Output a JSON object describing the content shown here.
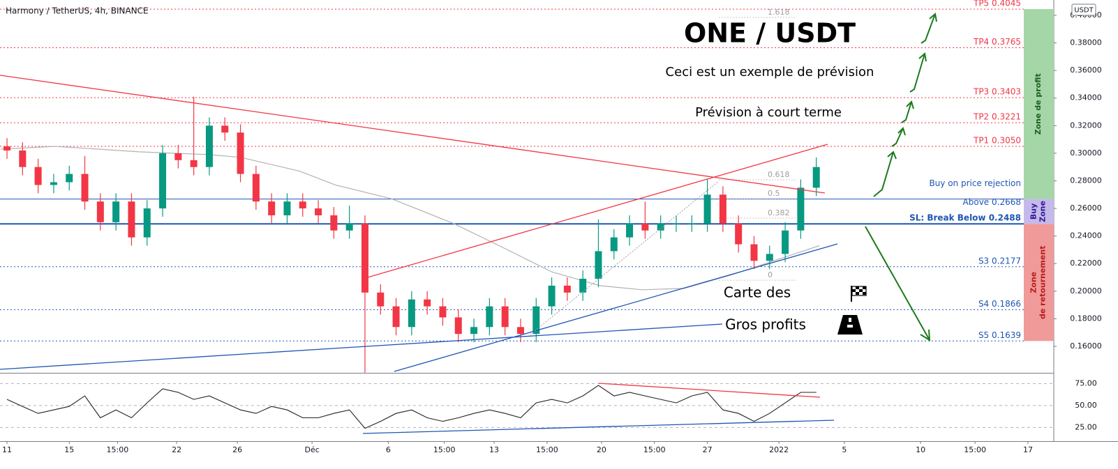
{
  "header": "Harmony / TetherUS, 4h, BINANCE",
  "currency": "USDT",
  "annotations": {
    "title": "ONE / USDT",
    "subtitle": "Ceci est un exemple de prévision",
    "short_term": "Prévision à court terme",
    "brand_line1": "Carte des",
    "brand_line2": "Gros profits"
  },
  "zones": [
    {
      "lines": [
        "Zone de profit"
      ],
      "from": 0.2668,
      "to": 0.4045,
      "color": "#a5d6a7",
      "text_color": "#1b5e20"
    },
    {
      "lines": [
        "Buy",
        "Zone"
      ],
      "from": 0.2488,
      "to": 0.2668,
      "color": "#c5b9ec",
      "text_color": "#311b92"
    },
    {
      "lines": [
        "Zone",
        "de retournement"
      ],
      "from": 0.1639,
      "to": 0.2488,
      "color": "#f09a9a",
      "text_color": "#b71c1c"
    }
  ],
  "chart_data": [
    {
      "type": "candlestick",
      "x": [
        0,
        1,
        2,
        3,
        4,
        5,
        6,
        7,
        8,
        9,
        10,
        11,
        12,
        13,
        14,
        15,
        16,
        17,
        18,
        19,
        20,
        21,
        22,
        23,
        24,
        25,
        26,
        27,
        28,
        29,
        30,
        31,
        32,
        33,
        34,
        35,
        36,
        37,
        38,
        39,
        40,
        41,
        42,
        43,
        44,
        45,
        46,
        47,
        48,
        49,
        50,
        51,
        52
      ],
      "open": [
        0.305,
        0.302,
        0.29,
        0.277,
        0.279,
        0.285,
        0.265,
        0.25,
        0.265,
        0.239,
        0.26,
        0.3,
        0.295,
        0.29,
        0.32,
        0.315,
        0.285,
        0.265,
        0.255,
        0.265,
        0.26,
        0.255,
        0.244,
        0.249,
        0.199,
        0.189,
        0.174,
        0.194,
        0.189,
        0.181,
        0.169,
        0.174,
        0.189,
        0.174,
        0.169,
        0.189,
        0.204,
        0.199,
        0.209,
        0.229,
        0.239,
        0.249,
        0.244,
        0.249,
        0.249,
        0.249,
        0.27,
        0.249,
        0.234,
        0.222,
        0.227,
        0.244,
        0.275
      ],
      "high": [
        0.311,
        0.308,
        0.296,
        0.285,
        0.291,
        0.298,
        0.271,
        0.271,
        0.271,
        0.266,
        0.306,
        0.306,
        0.341,
        0.326,
        0.326,
        0.321,
        0.291,
        0.271,
        0.271,
        0.271,
        0.266,
        0.261,
        0.262,
        0.255,
        0.205,
        0.195,
        0.2,
        0.2,
        0.195,
        0.187,
        0.18,
        0.195,
        0.195,
        0.18,
        0.195,
        0.21,
        0.21,
        0.215,
        0.252,
        0.245,
        0.255,
        0.265,
        0.255,
        0.255,
        0.255,
        0.281,
        0.276,
        0.255,
        0.24,
        0.233,
        0.25,
        0.281,
        0.297
      ],
      "low": [
        0.296,
        0.284,
        0.271,
        0.271,
        0.273,
        0.259,
        0.244,
        0.244,
        0.233,
        0.233,
        0.254,
        0.289,
        0.284,
        0.284,
        0.309,
        0.279,
        0.259,
        0.249,
        0.249,
        0.254,
        0.249,
        0.238,
        0.238,
        0.141,
        0.183,
        0.168,
        0.168,
        0.183,
        0.175,
        0.163,
        0.163,
        0.168,
        0.168,
        0.163,
        0.163,
        0.183,
        0.193,
        0.193,
        0.203,
        0.223,
        0.233,
        0.238,
        0.238,
        0.243,
        0.243,
        0.243,
        0.243,
        0.228,
        0.216,
        0.216,
        0.221,
        0.238,
        0.269
      ],
      "close": [
        0.302,
        0.29,
        0.277,
        0.279,
        0.285,
        0.265,
        0.25,
        0.265,
        0.239,
        0.26,
        0.3,
        0.295,
        0.29,
        0.32,
        0.315,
        0.285,
        0.265,
        0.255,
        0.265,
        0.26,
        0.255,
        0.244,
        0.249,
        0.199,
        0.189,
        0.174,
        0.194,
        0.189,
        0.181,
        0.169,
        0.174,
        0.189,
        0.174,
        0.169,
        0.189,
        0.204,
        0.199,
        0.209,
        0.229,
        0.239,
        0.249,
        0.244,
        0.249,
        0.249,
        0.249,
        0.27,
        0.249,
        0.234,
        0.222,
        0.227,
        0.244,
        0.275,
        0.29
      ],
      "up_color": "#089981",
      "down_color": "#f23645",
      "sma": {
        "color": "#b2b2b2",
        "x": [
          -0.4,
          3.1,
          8.5,
          13,
          15,
          18.8,
          21.1,
          24.7,
          28.7,
          31.8,
          35,
          38.1,
          40.8,
          43.5,
          46.6,
          49.8,
          52.2
        ],
        "values": [
          0.303,
          0.305,
          0.301,
          0.299,
          0.297,
          0.287,
          0.277,
          0.267,
          0.249,
          0.232,
          0.214,
          0.204,
          0.201,
          0.202,
          0.212,
          0.224,
          0.233
        ]
      },
      "xlim": [
        -0.45,
        67.26
      ],
      "ylim": [
        0.1408,
        0.4111
      ],
      "yticks": [
        {
          "value": 0.16,
          "label": "0.16000"
        },
        {
          "value": 0.18,
          "label": "0.18000"
        },
        {
          "value": 0.2,
          "label": "0.20000"
        },
        {
          "value": 0.22,
          "label": "0.22000"
        },
        {
          "value": 0.24,
          "label": "0.24000"
        },
        {
          "value": 0.26,
          "label": "0.26000"
        },
        {
          "value": 0.28,
          "label": "0.28000"
        },
        {
          "value": 0.3,
          "label": "0.30000"
        },
        {
          "value": 0.32,
          "label": "0.32000"
        },
        {
          "value": 0.34,
          "label": "0.34000"
        },
        {
          "value": 0.36,
          "label": "0.36000"
        },
        {
          "value": 0.38,
          "label": "0.38000"
        },
        {
          "value": 0.4,
          "label": "0.40000"
        }
      ],
      "levels": [
        {
          "lines": [
            "TP5 0.4045"
          ],
          "value": 0.4045,
          "color": "#f23645",
          "style": "dotted"
        },
        {
          "lines": [
            "TP4 0.3765"
          ],
          "value": 0.3765,
          "color": "#f23645",
          "style": "dotted"
        },
        {
          "lines": [
            "TP3 0.3403"
          ],
          "value": 0.3403,
          "color": "#f23645",
          "style": "dotted"
        },
        {
          "lines": [
            "TP2 0.3221"
          ],
          "value": 0.3221,
          "color": "#f23645",
          "style": "dotted"
        },
        {
          "lines": [
            "TP1 0.3050"
          ],
          "value": 0.305,
          "color": "#f23645",
          "style": "dotted"
        },
        {
          "lines": [
            "Buy on price rejection",
            "Above 0.2668"
          ],
          "value": 0.2668,
          "color": "#1e55b3",
          "style": "solid"
        },
        {
          "lines": [
            "SL: Break Below 0.2488"
          ],
          "value": 0.2488,
          "color": "#1e55b3",
          "style": "bold"
        },
        {
          "lines": [
            "S3 0.2177"
          ],
          "value": 0.2177,
          "color": "#1e55b3",
          "style": "dotted"
        },
        {
          "lines": [
            "S4 0.1866"
          ],
          "value": 0.1866,
          "color": "#1e55b3",
          "style": "dotted"
        },
        {
          "lines": [
            "S5 0.1639"
          ],
          "value": 0.1639,
          "color": "#1e55b3",
          "style": "dotted"
        }
      ],
      "fib": [
        {
          "ratio": 1.618,
          "price": 0.402
        },
        {
          "ratio": 0.618,
          "price": 0.2843
        },
        {
          "ratio": 0.5,
          "price": 0.2706
        },
        {
          "ratio": 0.382,
          "price": 0.2565
        },
        {
          "ratio": 0,
          "price": 0.2115
        }
      ]
    },
    {
      "type": "line",
      "x": [
        0,
        1,
        2,
        3,
        4,
        5,
        6,
        7,
        8,
        9,
        10,
        11,
        12,
        13,
        14,
        15,
        16,
        17,
        18,
        19,
        20,
        21,
        22,
        23,
        24,
        25,
        26,
        27,
        28,
        29,
        30,
        31,
        32,
        33,
        34,
        35,
        36,
        37,
        38,
        39,
        40,
        41,
        42,
        43,
        44,
        45,
        46,
        47,
        48,
        49,
        50,
        51,
        52
      ],
      "values": [
        57,
        49,
        41,
        45,
        49,
        61,
        36,
        45,
        36,
        53,
        69,
        65,
        57,
        61,
        53,
        45,
        41,
        49,
        45,
        36,
        36,
        41,
        45,
        24,
        32,
        41,
        45,
        36,
        32,
        36,
        41,
        45,
        41,
        36,
        53,
        57,
        53,
        61,
        73,
        61,
        65,
        61,
        57,
        53,
        61,
        65,
        45,
        41,
        32,
        41,
        53,
        65,
        65
      ],
      "color": "#222222",
      "ylim": [
        9.4,
        85.7
      ],
      "yticks": [
        {
          "value": 25,
          "label": "25.00"
        },
        {
          "value": 50,
          "label": "50.00"
        },
        {
          "value": 75,
          "label": "75.00"
        }
      ],
      "xticks": [
        {
          "value": 0,
          "label": "11"
        },
        {
          "value": 4.0,
          "label": "15"
        },
        {
          "value": 7.1,
          "label": "15:00"
        },
        {
          "value": 10.9,
          "label": "22"
        },
        {
          "value": 14.8,
          "label": "26"
        },
        {
          "value": 19.6,
          "label": "Déc"
        },
        {
          "value": 24.5,
          "label": "6"
        },
        {
          "value": 28.1,
          "label": "15:00"
        },
        {
          "value": 31.3,
          "label": "13"
        },
        {
          "value": 34.7,
          "label": "15:00"
        },
        {
          "value": 38.2,
          "label": "20"
        },
        {
          "value": 41.6,
          "label": "15:00"
        },
        {
          "value": 45.0,
          "label": "27"
        },
        {
          "value": 49.6,
          "label": "2022"
        },
        {
          "value": 53.8,
          "label": "5"
        },
        {
          "value": 58.7,
          "label": "10"
        },
        {
          "value": 62.2,
          "label": "15:00"
        },
        {
          "value": 65.6,
          "label": "17"
        }
      ]
    }
  ]
}
